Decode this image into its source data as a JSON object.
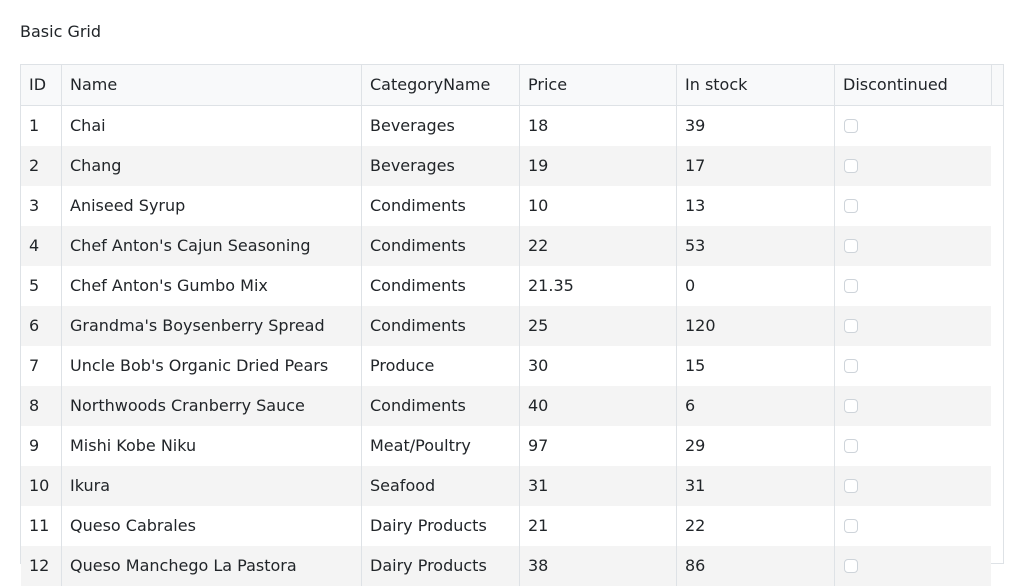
{
  "title": "Basic Grid",
  "columns": [
    "ID",
    "Name",
    "CategoryName",
    "Price",
    "In stock",
    "Discontinued"
  ],
  "rows": [
    {
      "id": "1",
      "name": "Chai",
      "category": "Beverages",
      "price": "18",
      "stock": "39",
      "discontinued": false
    },
    {
      "id": "2",
      "name": "Chang",
      "category": "Beverages",
      "price": "19",
      "stock": "17",
      "discontinued": false
    },
    {
      "id": "3",
      "name": "Aniseed Syrup",
      "category": "Condiments",
      "price": "10",
      "stock": "13",
      "discontinued": false
    },
    {
      "id": "4",
      "name": "Chef Anton's Cajun Seasoning",
      "category": "Condiments",
      "price": "22",
      "stock": "53",
      "discontinued": false
    },
    {
      "id": "5",
      "name": "Chef Anton's Gumbo Mix",
      "category": "Condiments",
      "price": "21.35",
      "stock": "0",
      "discontinued": false
    },
    {
      "id": "6",
      "name": "Grandma's Boysenberry Spread",
      "category": "Condiments",
      "price": "25",
      "stock": "120",
      "discontinued": false
    },
    {
      "id": "7",
      "name": "Uncle Bob's Organic Dried Pears",
      "category": "Produce",
      "price": "30",
      "stock": "15",
      "discontinued": false
    },
    {
      "id": "8",
      "name": "Northwoods Cranberry Sauce",
      "category": "Condiments",
      "price": "40",
      "stock": "6",
      "discontinued": false
    },
    {
      "id": "9",
      "name": "Mishi Kobe Niku",
      "category": "Meat/Poultry",
      "price": "97",
      "stock": "29",
      "discontinued": false
    },
    {
      "id": "10",
      "name": "Ikura",
      "category": "Seafood",
      "price": "31",
      "stock": "31",
      "discontinued": false
    },
    {
      "id": "11",
      "name": "Queso Cabrales",
      "category": "Dairy Products",
      "price": "21",
      "stock": "22",
      "discontinued": false
    },
    {
      "id": "12",
      "name": "Queso Manchego La Pastora",
      "category": "Dairy Products",
      "price": "38",
      "stock": "86",
      "discontinued": false
    }
  ]
}
